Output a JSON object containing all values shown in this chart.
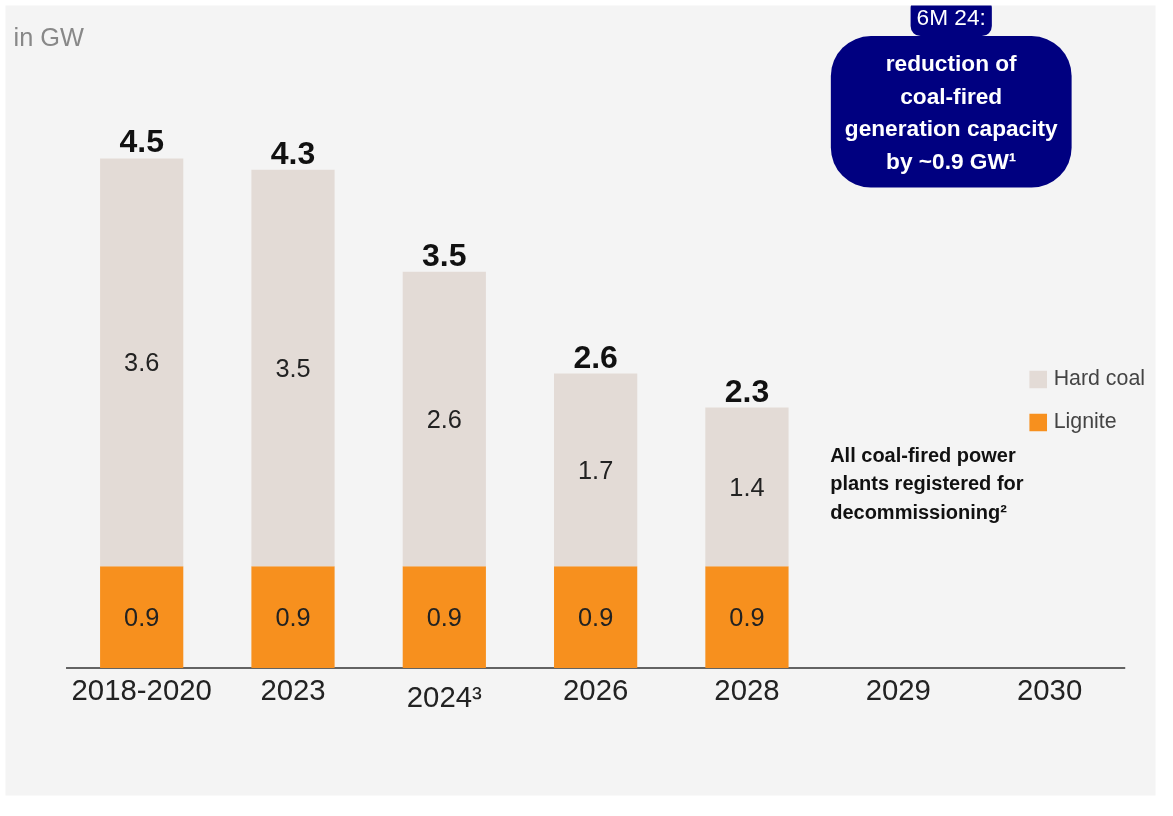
{
  "chart_data": {
    "type": "bar",
    "stacked": true,
    "data_labels": true,
    "legend": "right",
    "categories": [
      "2018-2020",
      "2023",
      "2024³",
      "2026",
      "2028",
      "2029",
      "2030"
    ],
    "series": [
      {
        "name": "Lignite",
        "color": "#f7901e",
        "values": [
          0.9,
          0.9,
          0.9,
          0.9,
          0.9,
          null,
          null
        ]
      },
      {
        "name": "Hard coal",
        "color": "#e3dbd6",
        "values": [
          3.6,
          3.5,
          2.6,
          1.7,
          1.4,
          null,
          null
        ]
      }
    ],
    "totals": [
      "4.5",
      "4.3",
      "3.5",
      "2.6",
      "2.3",
      null,
      null
    ],
    "annotations": [
      "in GW",
      "6M 24:\nreduction of\ncoal-fired\ngeneration capacity\nby ~0.9 GW¹",
      "All coal-fired power\nplants registered for\ndecommissioning²"
    ]
  }
}
